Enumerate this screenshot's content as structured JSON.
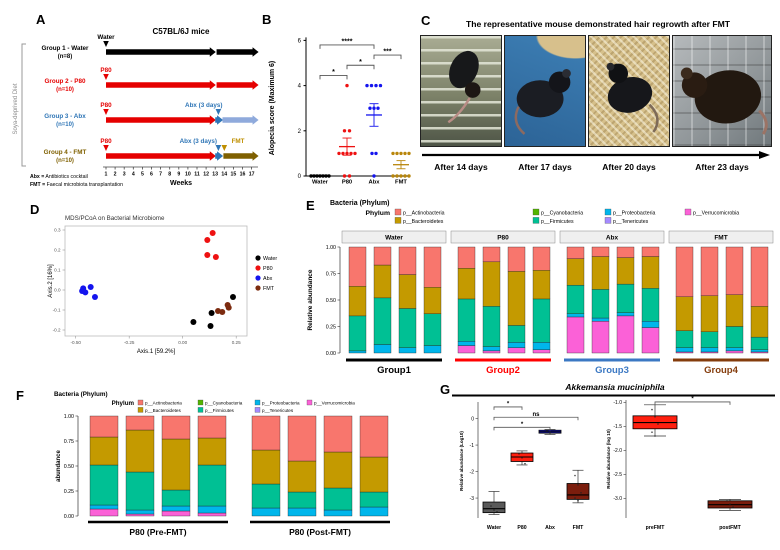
{
  "panels": {
    "a": {
      "label": "A",
      "title": "C57BL/6J mice",
      "side_label": "Soya-deprived Diet",
      "axis_label": "Weeks",
      "weeks_start": 1,
      "weeks_end": 17,
      "notes": [
        [
          "Abx =",
          "Antibiotics cocktail"
        ],
        [
          "FMT =",
          "Faecal microbiota transplantation"
        ]
      ],
      "groups": [
        {
          "name": "Group 1 - Water",
          "n": "(n=8)",
          "label_color": "#000000",
          "start": {
            "label": "Water",
            "color": "#000000"
          },
          "segments": [
            {
              "from": 1,
              "to": 12.9,
              "color": "#000000"
            },
            {
              "from": 13.15,
              "to": 17.6,
              "color": "#000000"
            }
          ],
          "events": []
        },
        {
          "name": "Group 2 - P80",
          "n": "(n=10)",
          "label_color": "#E50000",
          "start": {
            "label": "P80",
            "color": "#E50000"
          },
          "segments": [
            {
              "from": 1,
              "to": 12.9,
              "color": "#E50000"
            },
            {
              "from": 13.15,
              "to": 17.6,
              "color": "#E50000"
            }
          ],
          "events": []
        },
        {
          "name": "Group 3 - Abx",
          "n": "(n=10)",
          "label_color": "#2E75B6",
          "start": {
            "label": "P80",
            "color": "#E50000"
          },
          "segments": [
            {
              "from": 1,
              "to": 12.9,
              "color": "#E50000"
            },
            {
              "from": 13.0,
              "to": 13.7,
              "color": "#2E75B6"
            },
            {
              "from": 13.8,
              "to": 17.6,
              "color": "#8FAADC"
            }
          ],
          "events": [
            {
              "label": "Abx (3 days)",
              "color": "#2E75B6",
              "text_week": 13.8,
              "anchor": "end",
              "tri_week": 13.35
            }
          ]
        },
        {
          "name": "Group 4 - FMT",
          "n": "(n=10)",
          "label_color": "#7F6000",
          "start": {
            "label": "P80",
            "color": "#E50000"
          },
          "segments": [
            {
              "from": 1,
              "to": 12.9,
              "color": "#E50000"
            },
            {
              "from": 13.0,
              "to": 13.7,
              "color": "#2E75B6"
            },
            {
              "from": 13.9,
              "to": 17.6,
              "color": "#7F6000"
            }
          ],
          "events": [
            {
              "label": "Abx (3 days)",
              "color": "#2E75B6",
              "text_week": 13.2,
              "anchor": "end",
              "tri_week": 13.35
            },
            {
              "label": "FMT",
              "color": "#BF8F00",
              "anchor": "start",
              "text_week": 14.8,
              "tri_week": 14.0
            }
          ]
        }
      ]
    },
    "b": {
      "label": "B",
      "ylabel": "Alopecia score (Maximum 6)",
      "yticks": [
        0,
        2,
        4,
        6
      ],
      "groups": [
        {
          "name": "Water",
          "color": "#000000",
          "mean": 0.03,
          "lo": 0.03,
          "hi": 0.03,
          "points": [
            [
              -9,
              0
            ],
            [
              -6,
              0
            ],
            [
              -3,
              0
            ],
            [
              0,
              0
            ],
            [
              3,
              0
            ],
            [
              6,
              0
            ],
            [
              9,
              0
            ]
          ]
        },
        {
          "name": "P80",
          "color": "#EE1111",
          "mean": 1.3,
          "lo": 0.92,
          "hi": 1.68,
          "points": [
            [
              0,
              4
            ],
            [
              -2.5,
              2
            ],
            [
              2.5,
              2
            ],
            [
              -8,
              1
            ],
            [
              -4,
              1
            ],
            [
              0,
              1
            ],
            [
              4,
              1
            ],
            [
              8,
              1
            ],
            [
              -2.5,
              0
            ],
            [
              2.5,
              0
            ]
          ]
        },
        {
          "name": "Abx",
          "color": "#1414EE",
          "mean": 2.7,
          "lo": 2.2,
          "hi": 3.2,
          "points": [
            [
              -7,
              4
            ],
            [
              -2.5,
              4
            ],
            [
              2,
              4
            ],
            [
              6.5,
              4
            ],
            [
              -4,
              3
            ],
            [
              0,
              3
            ],
            [
              4,
              3
            ],
            [
              -2,
              1
            ],
            [
              2,
              1
            ],
            [
              0,
              0
            ]
          ]
        },
        {
          "name": "FMT",
          "color": "#B8860B",
          "mean": 0.5,
          "lo": 0.32,
          "hi": 0.68,
          "points": [
            [
              -8,
              1
            ],
            [
              -4,
              1
            ],
            [
              0,
              1
            ],
            [
              4,
              1
            ],
            [
              8,
              1
            ],
            [
              -8,
              0
            ],
            [
              -4,
              0
            ],
            [
              0,
              0
            ],
            [
              4,
              0
            ],
            [
              8,
              0
            ]
          ]
        }
      ],
      "brackets": [
        {
          "i": 0,
          "j": 2,
          "v": 5.8,
          "label": "****"
        },
        {
          "i": 2,
          "j": 3,
          "v": 5.35,
          "label": "***"
        },
        {
          "i": 1,
          "j": 2,
          "v": 4.9,
          "label": "*"
        },
        {
          "i": 0,
          "j": 1,
          "v": 4.45,
          "label": "*"
        }
      ]
    },
    "c": {
      "label": "C",
      "title": "The representative mouse demonstrated hair regrowth after FMT",
      "photos": [
        {
          "caption": "After 14 days"
        },
        {
          "caption": "After 17 days"
        },
        {
          "caption": "After 20 days"
        },
        {
          "caption": "After 23 days"
        }
      ]
    },
    "d": {
      "label": "D",
      "title": "MDS/PCoA on Bacterial Microbiome",
      "xlabel": "Axis.1  [59.2%]",
      "ylabel": "Axis.2  [16%]",
      "xticks": [
        -0.5,
        -0.25,
        0,
        0.25
      ],
      "yticks": [
        0.3,
        0.2,
        0.1,
        0,
        -0.1,
        -0.2
      ],
      "series": [
        {
          "name": "Water",
          "color": "#000000",
          "points": [
            [
              0.05,
              -0.16
            ],
            [
              0.13,
              -0.18
            ],
            [
              0.135,
              -0.115
            ],
            [
              0.235,
              -0.035
            ]
          ]
        },
        {
          "name": "P80",
          "color": "#EE1111",
          "points": [
            [
              0.115,
              0.25
            ],
            [
              0.14,
              0.285
            ],
            [
              0.115,
              0.175
            ],
            [
              0.155,
              0.165
            ]
          ]
        },
        {
          "name": "Abx",
          "color": "#1414EE",
          "points": [
            [
              -0.47,
              -0.005
            ],
            [
              -0.465,
              0.008
            ],
            [
              -0.455,
              -0.012
            ],
            [
              -0.43,
              0.015
            ],
            [
              -0.41,
              -0.035
            ]
          ]
        },
        {
          "name": "FMT",
          "color": "#7C2B0F",
          "points": [
            [
              0.165,
              -0.105
            ],
            [
              0.185,
              -0.11
            ],
            [
              0.21,
              -0.075
            ],
            [
              0.215,
              -0.088
            ]
          ]
        }
      ]
    },
    "e": {
      "label": "E",
      "title": "Bacteria (Phylum)",
      "legend_title": "Phylum",
      "ylabel": "Relative abundance",
      "yticks": [
        "1.00",
        "0.75",
        "0.50",
        "0.25",
        "0.00"
      ],
      "phyla": [
        {
          "key": "act",
          "label": "p__Actinobacteria",
          "color": "#F8766D"
        },
        {
          "key": "bac",
          "label": "p__Bacteroidetes",
          "color": "#C49A00"
        },
        {
          "key": "cya",
          "label": "p__Cyanobacteria",
          "color": "#53B400"
        },
        {
          "key": "fir",
          "label": "p__Firmicutes",
          "color": "#00C094"
        },
        {
          "key": "pro",
          "label": "p__Proteobacteria",
          "color": "#00B6EB"
        },
        {
          "key": "ten",
          "label": "p__Tenericutes",
          "color": "#A58AFF"
        },
        {
          "key": "ver",
          "label": "p__Verrucomicrobia",
          "color": "#FB61D7"
        }
      ],
      "stack_order": [
        "ver",
        "ten",
        "pro",
        "fir",
        "cya",
        "bac",
        "act"
      ],
      "facets": [
        {
          "strip": "Water",
          "group_label": "Group1",
          "group_color": "#000000",
          "bars": [
            {
              "pro": 0.02,
              "fir": 0.33,
              "bac": 0.28,
              "act": 0.37
            },
            {
              "pro": 0.08,
              "fir": 0.44,
              "bac": 0.31,
              "act": 0.17
            },
            {
              "pro": 0.05,
              "fir": 0.37,
              "bac": 0.32,
              "act": 0.26
            },
            {
              "pro": 0.07,
              "fir": 0.3,
              "bac": 0.25,
              "act": 0.38
            }
          ]
        },
        {
          "strip": "P80",
          "group_label": "Group2",
          "group_color": "#FF0000",
          "bars": [
            {
              "ver": 0.07,
              "pro": 0.04,
              "fir": 0.4,
              "bac": 0.29,
              "act": 0.2
            },
            {
              "ver": 0.02,
              "pro": 0.04,
              "fir": 0.38,
              "bac": 0.42,
              "act": 0.14
            },
            {
              "ver": 0.05,
              "pro": 0.05,
              "fir": 0.16,
              "bac": 0.51,
              "act": 0.23
            },
            {
              "ver": 0.03,
              "pro": 0.07,
              "fir": 0.41,
              "bac": 0.27,
              "act": 0.22
            }
          ]
        },
        {
          "strip": "Abx",
          "group_label": "Group3",
          "group_color": "#3B78C3",
          "bars": [
            {
              "ver": 0.34,
              "pro": 0.03,
              "fir": 0.27,
              "bac": 0.25,
              "act": 0.11
            },
            {
              "ver": 0.3,
              "pro": 0.03,
              "fir": 0.27,
              "bac": 0.31,
              "act": 0.09
            },
            {
              "ver": 0.35,
              "pro": 0.03,
              "fir": 0.27,
              "bac": 0.25,
              "act": 0.1
            },
            {
              "ver": 0.24,
              "pro": 0.06,
              "fir": 0.31,
              "bac": 0.3,
              "act": 0.09
            }
          ]
        },
        {
          "strip": "FMT",
          "group_label": "Group4",
          "group_color": "#843C0C",
          "bars": [
            {
              "ver": 0.01,
              "pro": 0.04,
              "fir": 0.16,
              "bac": 0.32,
              "act": 0.47
            },
            {
              "ver": 0.01,
              "pro": 0.04,
              "fir": 0.15,
              "bac": 0.34,
              "act": 0.46
            },
            {
              "ver": 0.02,
              "pro": 0.03,
              "fir": 0.2,
              "bac": 0.3,
              "act": 0.45
            },
            {
              "ver": 0.01,
              "pro": 0.02,
              "fir": 0.12,
              "bac": 0.29,
              "act": 0.56
            }
          ]
        }
      ]
    },
    "f": {
      "label": "F",
      "title": "Bacteria (Phylum)",
      "legend_title": "Phylum",
      "ylabel": "abundance",
      "groups": [
        {
          "label": "P80 (Pre-FMT)",
          "bars": [
            {
              "ver": 0.07,
              "pro": 0.04,
              "fir": 0.4,
              "bac": 0.28,
              "act": 0.21
            },
            {
              "ver": 0.02,
              "pro": 0.04,
              "fir": 0.38,
              "bac": 0.42,
              "act": 0.14
            },
            {
              "ver": 0.05,
              "pro": 0.05,
              "fir": 0.16,
              "bac": 0.51,
              "act": 0.23
            },
            {
              "ver": 0.03,
              "pro": 0.07,
              "fir": 0.41,
              "bac": 0.27,
              "act": 0.22
            }
          ]
        },
        {
          "label": "P80 (Post-FMT)",
          "bars": [
            {
              "pro": 0.08,
              "fir": 0.24,
              "bac": 0.34,
              "act": 0.34
            },
            {
              "pro": 0.08,
              "fir": 0.16,
              "bac": 0.31,
              "act": 0.45
            },
            {
              "pro": 0.06,
              "fir": 0.22,
              "bac": 0.36,
              "act": 0.36
            },
            {
              "pro": 0.09,
              "fir": 0.15,
              "bac": 0.35,
              "act": 0.41
            }
          ]
        }
      ]
    },
    "g": {
      "label": "G",
      "title": "Akkemansia muciniphila",
      "left": {
        "ylabel": "Relative abundance (Log10)",
        "yticks": [
          0,
          -1,
          -2,
          -3
        ],
        "categories": [
          "Water",
          "P80",
          "Abx",
          "FMT"
        ],
        "boxes": [
          {
            "color": "#595959",
            "q1": -3.55,
            "q3": -3.15,
            "med": -3.4,
            "lo": -3.62,
            "hi": -2.75,
            "pts": [
              -3.3,
              -3.45,
              -3.52
            ]
          },
          {
            "color": "#FF1F0F",
            "q1": -1.62,
            "q3": -1.3,
            "med": -1.45,
            "lo": -1.75,
            "hi": -1.22,
            "pts": [
              -1.33,
              -1.48,
              -1.7
            ]
          },
          {
            "color": "#2323FF",
            "q1": -0.55,
            "q3": -0.44,
            "med": -0.5,
            "lo": -0.6,
            "hi": -0.41,
            "pts": [
              -0.47,
              -0.52
            ]
          },
          {
            "color": "#7B1D0D",
            "q1": -3.05,
            "q3": -2.45,
            "med": -2.88,
            "lo": -3.18,
            "hi": -1.95,
            "pts": [
              -2.15,
              -2.5,
              -2.8,
              -3.0,
              -3.1
            ]
          }
        ],
        "brackets": [
          {
            "i": 0,
            "j": 1,
            "v": 0.44,
            "label": "*"
          },
          {
            "i": 0,
            "j": 3,
            "v": 0.05,
            "label": "ns"
          },
          {
            "i": 0,
            "j": 2,
            "v": -0.33,
            "label": "*"
          }
        ]
      },
      "right": {
        "ylabel": "Relative abundance (log 10)",
        "yticks": [
          -1.0,
          -1.5,
          -2.0,
          -2.5,
          -3.0
        ],
        "categories": [
          "preFMT",
          "postFMT"
        ],
        "boxes": [
          {
            "color": "#FF1F0F",
            "q1": -1.55,
            "q3": -1.28,
            "med": -1.42,
            "lo": -1.7,
            "hi": -1.05,
            "pts": [
              -1.15,
              -1.3,
              -1.45,
              -1.62,
              -1.7
            ]
          },
          {
            "color": "#7B1D0D",
            "q1": -3.2,
            "q3": -3.05,
            "med": -3.13,
            "lo": -3.25,
            "hi": -3.02,
            "pts": [
              -3.05,
              -3.12,
              -3.18
            ]
          }
        ],
        "brackets": [
          {
            "i": 0,
            "j": 1,
            "v": -0.99,
            "label": "*"
          }
        ]
      }
    }
  }
}
